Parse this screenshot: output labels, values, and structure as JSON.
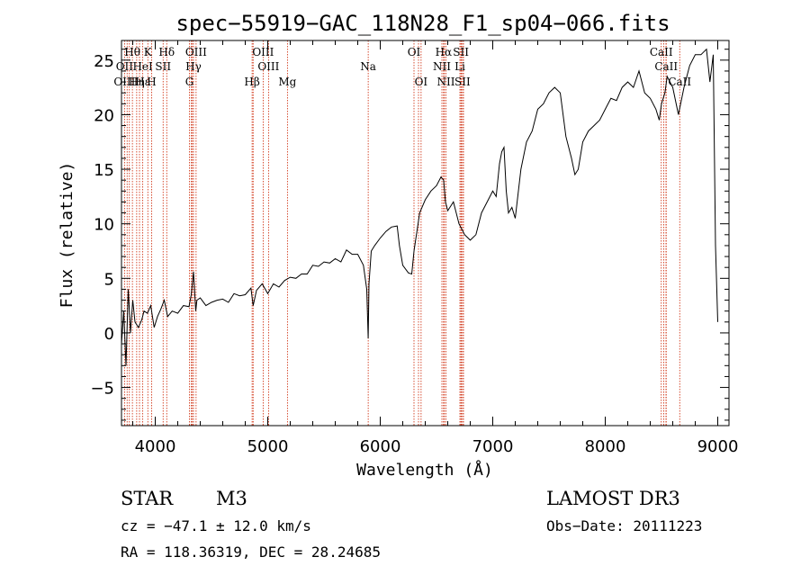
{
  "chart_data": {
    "type": "line",
    "title": "spec−55919−GAC_118N28_F1_sp04−066.fits",
    "xlabel": "Wavelength (Å)",
    "ylabel": "Flux (relative)",
    "xlim": [
      3700,
      9100
    ],
    "ylim": [
      -8.5,
      26.8
    ],
    "xticks": [
      4000,
      5000,
      6000,
      7000,
      8000,
      9000
    ],
    "yticks": [
      -5,
      0,
      5,
      10,
      15,
      20,
      25
    ],
    "series": [
      {
        "name": "spectrum",
        "x": [
          3700,
          3720,
          3740,
          3760,
          3780,
          3800,
          3820,
          3850,
          3880,
          3900,
          3930,
          3960,
          3990,
          4020,
          4050,
          4080,
          4110,
          4150,
          4200,
          4250,
          4300,
          4320,
          4340,
          4360,
          4370,
          4400,
          4450,
          4500,
          4550,
          4600,
          4650,
          4700,
          4750,
          4800,
          4850,
          4870,
          4900,
          4950,
          5000,
          5050,
          5100,
          5150,
          5200,
          5250,
          5300,
          5350,
          5400,
          5450,
          5500,
          5550,
          5600,
          5650,
          5700,
          5750,
          5800,
          5850,
          5880,
          5893,
          5900,
          5920,
          5950,
          6000,
          6050,
          6100,
          6150,
          6170,
          6200,
          6250,
          6280,
          6300,
          6350,
          6400,
          6450,
          6500,
          6540,
          6563,
          6580,
          6600,
          6650,
          6700,
          6750,
          6800,
          6850,
          6900,
          6950,
          7000,
          7030,
          7060,
          7080,
          7100,
          7120,
          7140,
          7170,
          7200,
          7250,
          7300,
          7350,
          7400,
          7450,
          7500,
          7550,
          7600,
          7650,
          7700,
          7730,
          7760,
          7800,
          7850,
          7900,
          7950,
          8000,
          8050,
          8100,
          8150,
          8200,
          8250,
          8300,
          8350,
          8400,
          8450,
          8480,
          8500,
          8530,
          8550,
          8600,
          8650,
          8700,
          8750,
          8800,
          8850,
          8900,
          8930,
          8960,
          8980,
          9000
        ],
        "y": [
          -1,
          2,
          -3,
          4,
          0,
          3,
          1,
          0.5,
          1.2,
          2,
          1.8,
          2.5,
          0.5,
          1.5,
          2.2,
          3,
          1.5,
          2,
          1.8,
          2.5,
          2.4,
          3.5,
          5.6,
          2,
          3,
          3.2,
          2.5,
          2.8,
          3,
          3.1,
          2.8,
          3.6,
          3.4,
          3.5,
          4.1,
          2.5,
          3.9,
          4.5,
          3.6,
          4.5,
          4.2,
          4.8,
          5.1,
          5,
          5.4,
          5.4,
          6.2,
          6.1,
          6.5,
          6.4,
          6.8,
          6.5,
          7.6,
          7.2,
          7.2,
          6.2,
          4,
          -0.5,
          4.5,
          7.5,
          8,
          8.7,
          9.3,
          9.7,
          9.8,
          8,
          6.2,
          5.5,
          5.4,
          7.5,
          11,
          12.2,
          13,
          13.5,
          14.3,
          14,
          12,
          11.2,
          12,
          10,
          9,
          8.5,
          9,
          11,
          12,
          13,
          12.5,
          15.5,
          16.6,
          17,
          13,
          11,
          11.5,
          10.5,
          15,
          17.5,
          18.5,
          20.5,
          21,
          22,
          22.5,
          22,
          18,
          16,
          14.5,
          15,
          17.5,
          18.5,
          19,
          19.5,
          20.5,
          21.5,
          21.3,
          22.5,
          23,
          22.5,
          24,
          22,
          21.5,
          20.5,
          19.5,
          21,
          22,
          23.5,
          22.5,
          20,
          22.5,
          24.5,
          25.5,
          25.5,
          26,
          23,
          25.5,
          8,
          1
        ]
      }
    ],
    "line_markers": {
      "top": [
        {
          "label": "Hθ",
          "x": 3797
        },
        {
          "label": "K",
          "x": 3934
        },
        {
          "label": "Hδ",
          "x": 4102
        },
        {
          "label": "OIII",
          "x": 4363
        },
        {
          "label": "OIII",
          "x": 4959
        },
        {
          "label": "OI",
          "x": 6300
        },
        {
          "label": "Hα",
          "x": 6563
        },
        {
          "label": "SII",
          "x": 6717
        },
        {
          "label": "CaII",
          "x": 8498
        }
      ],
      "mid": [
        {
          "label": "OII",
          "x": 3727
        },
        {
          "label": "HeI",
          "x": 3889
        },
        {
          "label": "SII",
          "x": 4070
        },
        {
          "label": "Hγ",
          "x": 4340
        },
        {
          "label": "OIII",
          "x": 5007
        },
        {
          "label": "Na",
          "x": 5893
        },
        {
          "label": "NII",
          "x": 6548
        },
        {
          "label": "Li",
          "x": 6708
        },
        {
          "label": "CaII",
          "x": 8542
        }
      ],
      "low": [
        {
          "label": "OIII",
          "x": 3727
        },
        {
          "label": "Hε",
          "x": 3889
        },
        {
          "label": "Hη",
          "x": 3835
        },
        {
          "label": "H",
          "x": 3968
        },
        {
          "label": "G",
          "x": 4304
        },
        {
          "label": "Hβ",
          "x": 4861
        },
        {
          "label": "Mg",
          "x": 5175
        },
        {
          "label": "OI",
          "x": 6363
        },
        {
          "label": "NII",
          "x": 6584
        },
        {
          "label": "SII",
          "x": 6731
        },
        {
          "label": "CaII",
          "x": 8662
        }
      ],
      "extra_lines": [
        3750,
        3770,
        3860,
        4320,
        4330,
        4870,
        6340,
        6570,
        6720,
        6740,
        8520,
        8540
      ]
    }
  },
  "info": {
    "object_class": "STAR",
    "subclass": "M3",
    "survey": "LAMOST DR3",
    "redshift": "cz = −47.1 ± 12.0 km/s",
    "obs_date": "Obs−Date: 20111223",
    "coords": "RA = 118.36319, DEC =  28.24685"
  },
  "colors": {
    "line": "#000000",
    "marker": "#cc2200"
  }
}
